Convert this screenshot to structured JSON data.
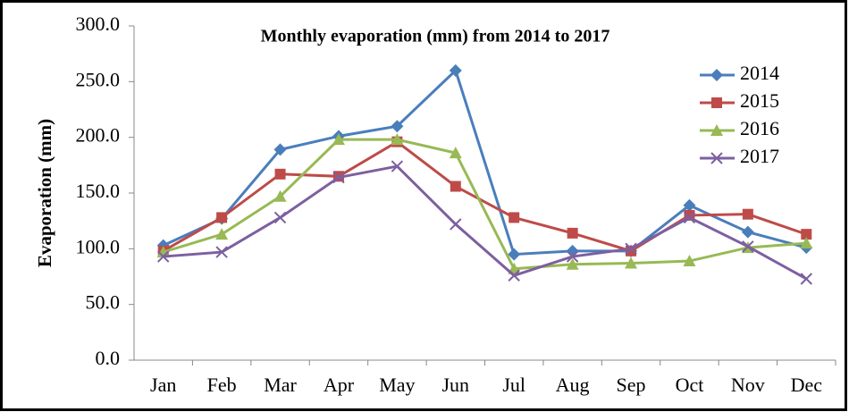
{
  "chart_data": {
    "type": "line",
    "title": "Monthly evaporation (mm) from 2014 to 2017",
    "y_label": "Evaporation (mm)",
    "categories": [
      "Jan",
      "Feb",
      "Mar",
      "Apr",
      "May",
      "Jun",
      "Jul",
      "Aug",
      "Sep",
      "Oct",
      "Nov",
      "Dec"
    ],
    "series": [
      {
        "name": "2014",
        "color": "#4a7ebb",
        "marker": "diamond",
        "values": [
          103,
          127,
          189,
          201,
          210,
          260,
          95,
          98,
          98,
          139,
          115,
          101
        ]
      },
      {
        "name": "2015",
        "color": "#be4b48",
        "marker": "square",
        "values": [
          98,
          128,
          167,
          165,
          196,
          156,
          128,
          114,
          98,
          130,
          131,
          113
        ]
      },
      {
        "name": "2016",
        "color": "#98b954",
        "marker": "triangle",
        "values": [
          97,
          113,
          147,
          198,
          198,
          186,
          82,
          86,
          87,
          89,
          101,
          105
        ]
      },
      {
        "name": "2017",
        "color": "#7d5fa0",
        "marker": "x",
        "values": [
          93,
          97,
          128,
          164,
          174,
          122,
          76,
          93,
          100,
          128,
          102,
          73
        ]
      }
    ],
    "ylim": [
      0,
      300
    ],
    "yticks": [
      {
        "value": 0,
        "label": "0.0"
      },
      {
        "value": 50,
        "label": "50.0"
      },
      {
        "value": 100,
        "label": "100.0"
      },
      {
        "value": 150,
        "label": "150.0"
      },
      {
        "value": 200,
        "label": "200.0"
      },
      {
        "value": 250,
        "label": "250.0"
      },
      {
        "value": 300,
        "label": "300.0"
      }
    ],
    "grid": false,
    "legend": "top-right"
  }
}
